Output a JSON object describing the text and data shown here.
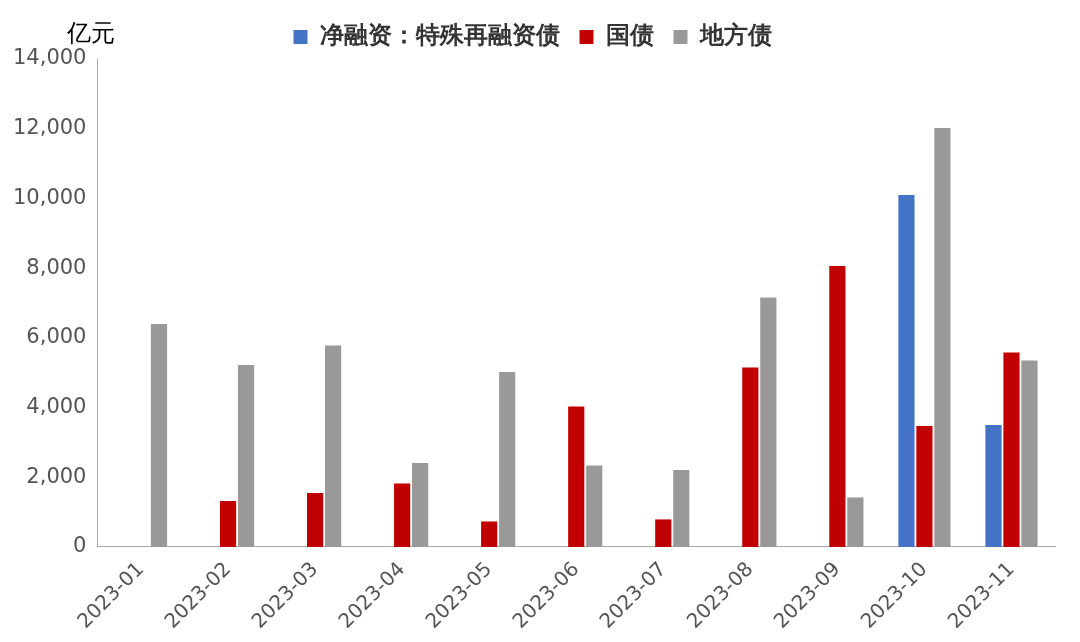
{
  "chart_data": {
    "type": "bar",
    "ylabel": "亿元",
    "categories": [
      "2023-01",
      "2023-02",
      "2023-03",
      "2023-04",
      "2023-05",
      "2023-06",
      "2023-07",
      "2023-08",
      "2023-09",
      "2023-10",
      "2023-11"
    ],
    "series": [
      {
        "name": "净融资：特殊再融资债",
        "color": "#4472c4",
        "values": [
          null,
          null,
          null,
          null,
          null,
          null,
          null,
          null,
          null,
          10100,
          3500
        ]
      },
      {
        "name": "国债",
        "color": "#c00000",
        "values": [
          null,
          1320,
          1550,
          1820,
          730,
          4030,
          790,
          5150,
          8060,
          3470,
          5580
        ]
      },
      {
        "name": "地方债",
        "color": "#999999",
        "values": [
          6400,
          5220,
          5780,
          2410,
          5020,
          2340,
          2210,
          7160,
          1420,
          12020,
          5350
        ]
      }
    ],
    "ylim": [
      0,
      14000
    ],
    "yticks": [
      0,
      {
        "value": 2000,
        "label": "2,000"
      },
      {
        "value": 4000,
        "label": "4,000"
      },
      {
        "value": 6000,
        "label": "6,000"
      },
      {
        "value": 8000,
        "label": "8,000"
      },
      {
        "value": 10000,
        "label": "10,000"
      },
      {
        "value": 12000,
        "label": "12,000"
      },
      {
        "value": 14000,
        "label": "14,000"
      }
    ],
    "grid": false,
    "legend": "top"
  }
}
